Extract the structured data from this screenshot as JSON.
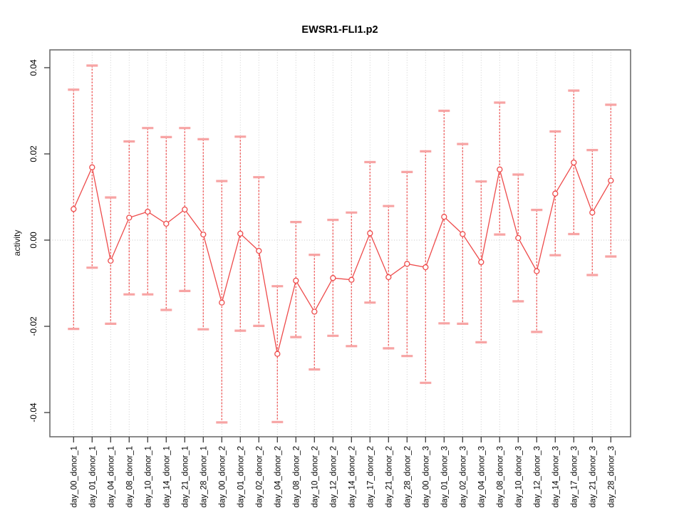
{
  "page": {
    "background": "#ffffff"
  },
  "chart_data": {
    "type": "scatter",
    "title": "EWSR1-FLI1.p2",
    "xlabel": "",
    "ylabel": "activity",
    "legend": "none",
    "grid": "vertical dotted gridline per category; horizontal dotted line at y=0",
    "marker": "open-circle",
    "connected_line": true,
    "error_bars": "vertical dashed line with horizontal caps (upper/lower series)",
    "ylim": [
      -0.0449,
      0.0441
    ],
    "y_ticks": [
      0.04,
      0.02,
      0.0,
      -0.02,
      -0.04
    ],
    "y_tick_labels": [
      "0.04",
      "0.02",
      "0.00",
      "-0.02",
      "-0.04"
    ],
    "categories": [
      "day_00_donor_1",
      "day_01_donor_1",
      "day_04_donor_1",
      "day_08_donor_1",
      "day_10_donor_1",
      "day_14_donor_1",
      "day_21_donor_1",
      "day_28_donor_1",
      "day_00_donor_2",
      "day_01_donor_2",
      "day_02_donor_2",
      "day_04_donor_2",
      "day_08_donor_2",
      "day_10_donor_2",
      "day_12_donor_2",
      "day_14_donor_2",
      "day_17_donor_2",
      "day_21_donor_2",
      "day_28_donor_2",
      "day_00_donor_3",
      "day_01_donor_3",
      "day_02_donor_3",
      "day_04_donor_3",
      "day_08_donor_3",
      "day_10_donor_3",
      "day_12_donor_3",
      "day_14_donor_3",
      "day_17_donor_3",
      "day_21_donor_3",
      "day_28_donor_3"
    ],
    "series": [
      {
        "name": "center",
        "values": [
          0.0072,
          0.0169,
          -0.0048,
          0.0052,
          0.0066,
          0.0038,
          0.0071,
          0.0013,
          -0.0145,
          0.0015,
          -0.0025,
          -0.0264,
          -0.0094,
          -0.0166,
          -0.0088,
          -0.0092,
          0.0016,
          -0.0086,
          -0.0055,
          -0.0063,
          0.0054,
          0.0014,
          -0.0051,
          0.0164,
          0.0005,
          -0.0072,
          0.0108,
          0.018,
          0.0064,
          0.0138
        ]
      },
      {
        "name": "upper",
        "values": [
          0.0349,
          0.0405,
          0.0099,
          0.0229,
          0.026,
          0.0239,
          0.026,
          0.0234,
          0.0137,
          0.024,
          0.0146,
          -0.0107,
          0.0042,
          -0.0034,
          0.0047,
          0.0064,
          0.0181,
          0.0079,
          0.0158,
          0.0206,
          0.03,
          0.0223,
          0.0136,
          0.0319,
          0.0152,
          0.007,
          0.0252,
          0.0347,
          0.0209,
          0.0314
        ]
      },
      {
        "name": "lower",
        "values": [
          -0.0206,
          -0.0064,
          -0.0194,
          -0.0126,
          -0.0126,
          -0.0162,
          -0.0118,
          -0.0207,
          -0.0423,
          -0.021,
          -0.0199,
          -0.0422,
          -0.0225,
          -0.03,
          -0.0222,
          -0.0246,
          -0.0145,
          -0.0251,
          -0.0269,
          -0.0331,
          -0.0193,
          -0.0194,
          -0.0237,
          0.0013,
          -0.0142,
          -0.0213,
          -0.0035,
          0.0014,
          -0.0081,
          -0.0038
        ]
      }
    ],
    "colors": {
      "series_line": "#ee4b4b",
      "marker_stroke": "#ee4b4b",
      "error_line": "#f05b5b",
      "error_cap": "#f7a4a4",
      "gridline": "#cfcfcf",
      "zero_line": "#c4c4c4",
      "plot_border": "#6e6e6e",
      "tick": "#3a3a3a",
      "text": "#000000"
    }
  }
}
